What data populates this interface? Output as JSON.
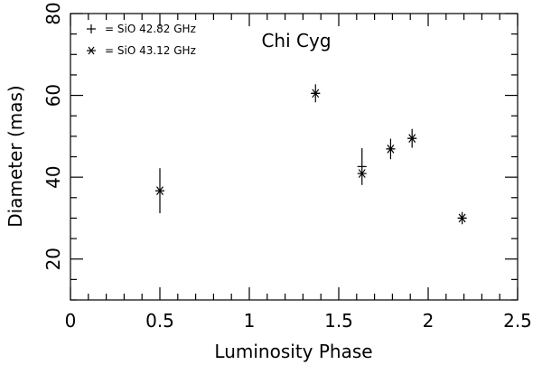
{
  "chart_data": {
    "type": "scatter",
    "title": "Chi Cyg",
    "xlabel": "Luminosity Phase",
    "ylabel": "Diameter (mas)",
    "xlim": [
      0,
      2.5
    ],
    "ylim": [
      10,
      80
    ],
    "x_ticks": [
      0,
      0.5,
      1,
      1.5,
      2,
      2.5
    ],
    "x_tick_labels": [
      "0",
      "0.5",
      "1",
      "1.5",
      "2",
      "2.5"
    ],
    "y_ticks": [
      20,
      40,
      60,
      80
    ],
    "y_tick_labels": [
      "20",
      "40",
      "60",
      "80"
    ],
    "grid": false,
    "legend_position": "top-left",
    "series": [
      {
        "name": "SiO 42.82 GHz",
        "marker": "plus",
        "points": [
          {
            "x": 0.5,
            "y": 36.7,
            "yerr": 5.5
          },
          {
            "x": 1.37,
            "y": 60.5,
            "yerr": 2.2
          },
          {
            "x": 1.63,
            "y": 42.6,
            "yerr": 4.5
          },
          {
            "x": 1.79,
            "y": 46.9,
            "yerr": 2.5
          },
          {
            "x": 1.91,
            "y": 49.5,
            "yerr": 2.3
          },
          {
            "x": 2.19,
            "y": 30.0,
            "yerr": 1.5
          }
        ]
      },
      {
        "name": "SiO 43.12 GHz",
        "marker": "star",
        "points": [
          {
            "x": 0.5,
            "y": 36.7
          },
          {
            "x": 1.37,
            "y": 60.5
          },
          {
            "x": 1.63,
            "y": 40.9
          },
          {
            "x": 1.79,
            "y": 46.9
          },
          {
            "x": 1.91,
            "y": 49.5
          },
          {
            "x": 2.19,
            "y": 30.0
          }
        ]
      }
    ]
  }
}
